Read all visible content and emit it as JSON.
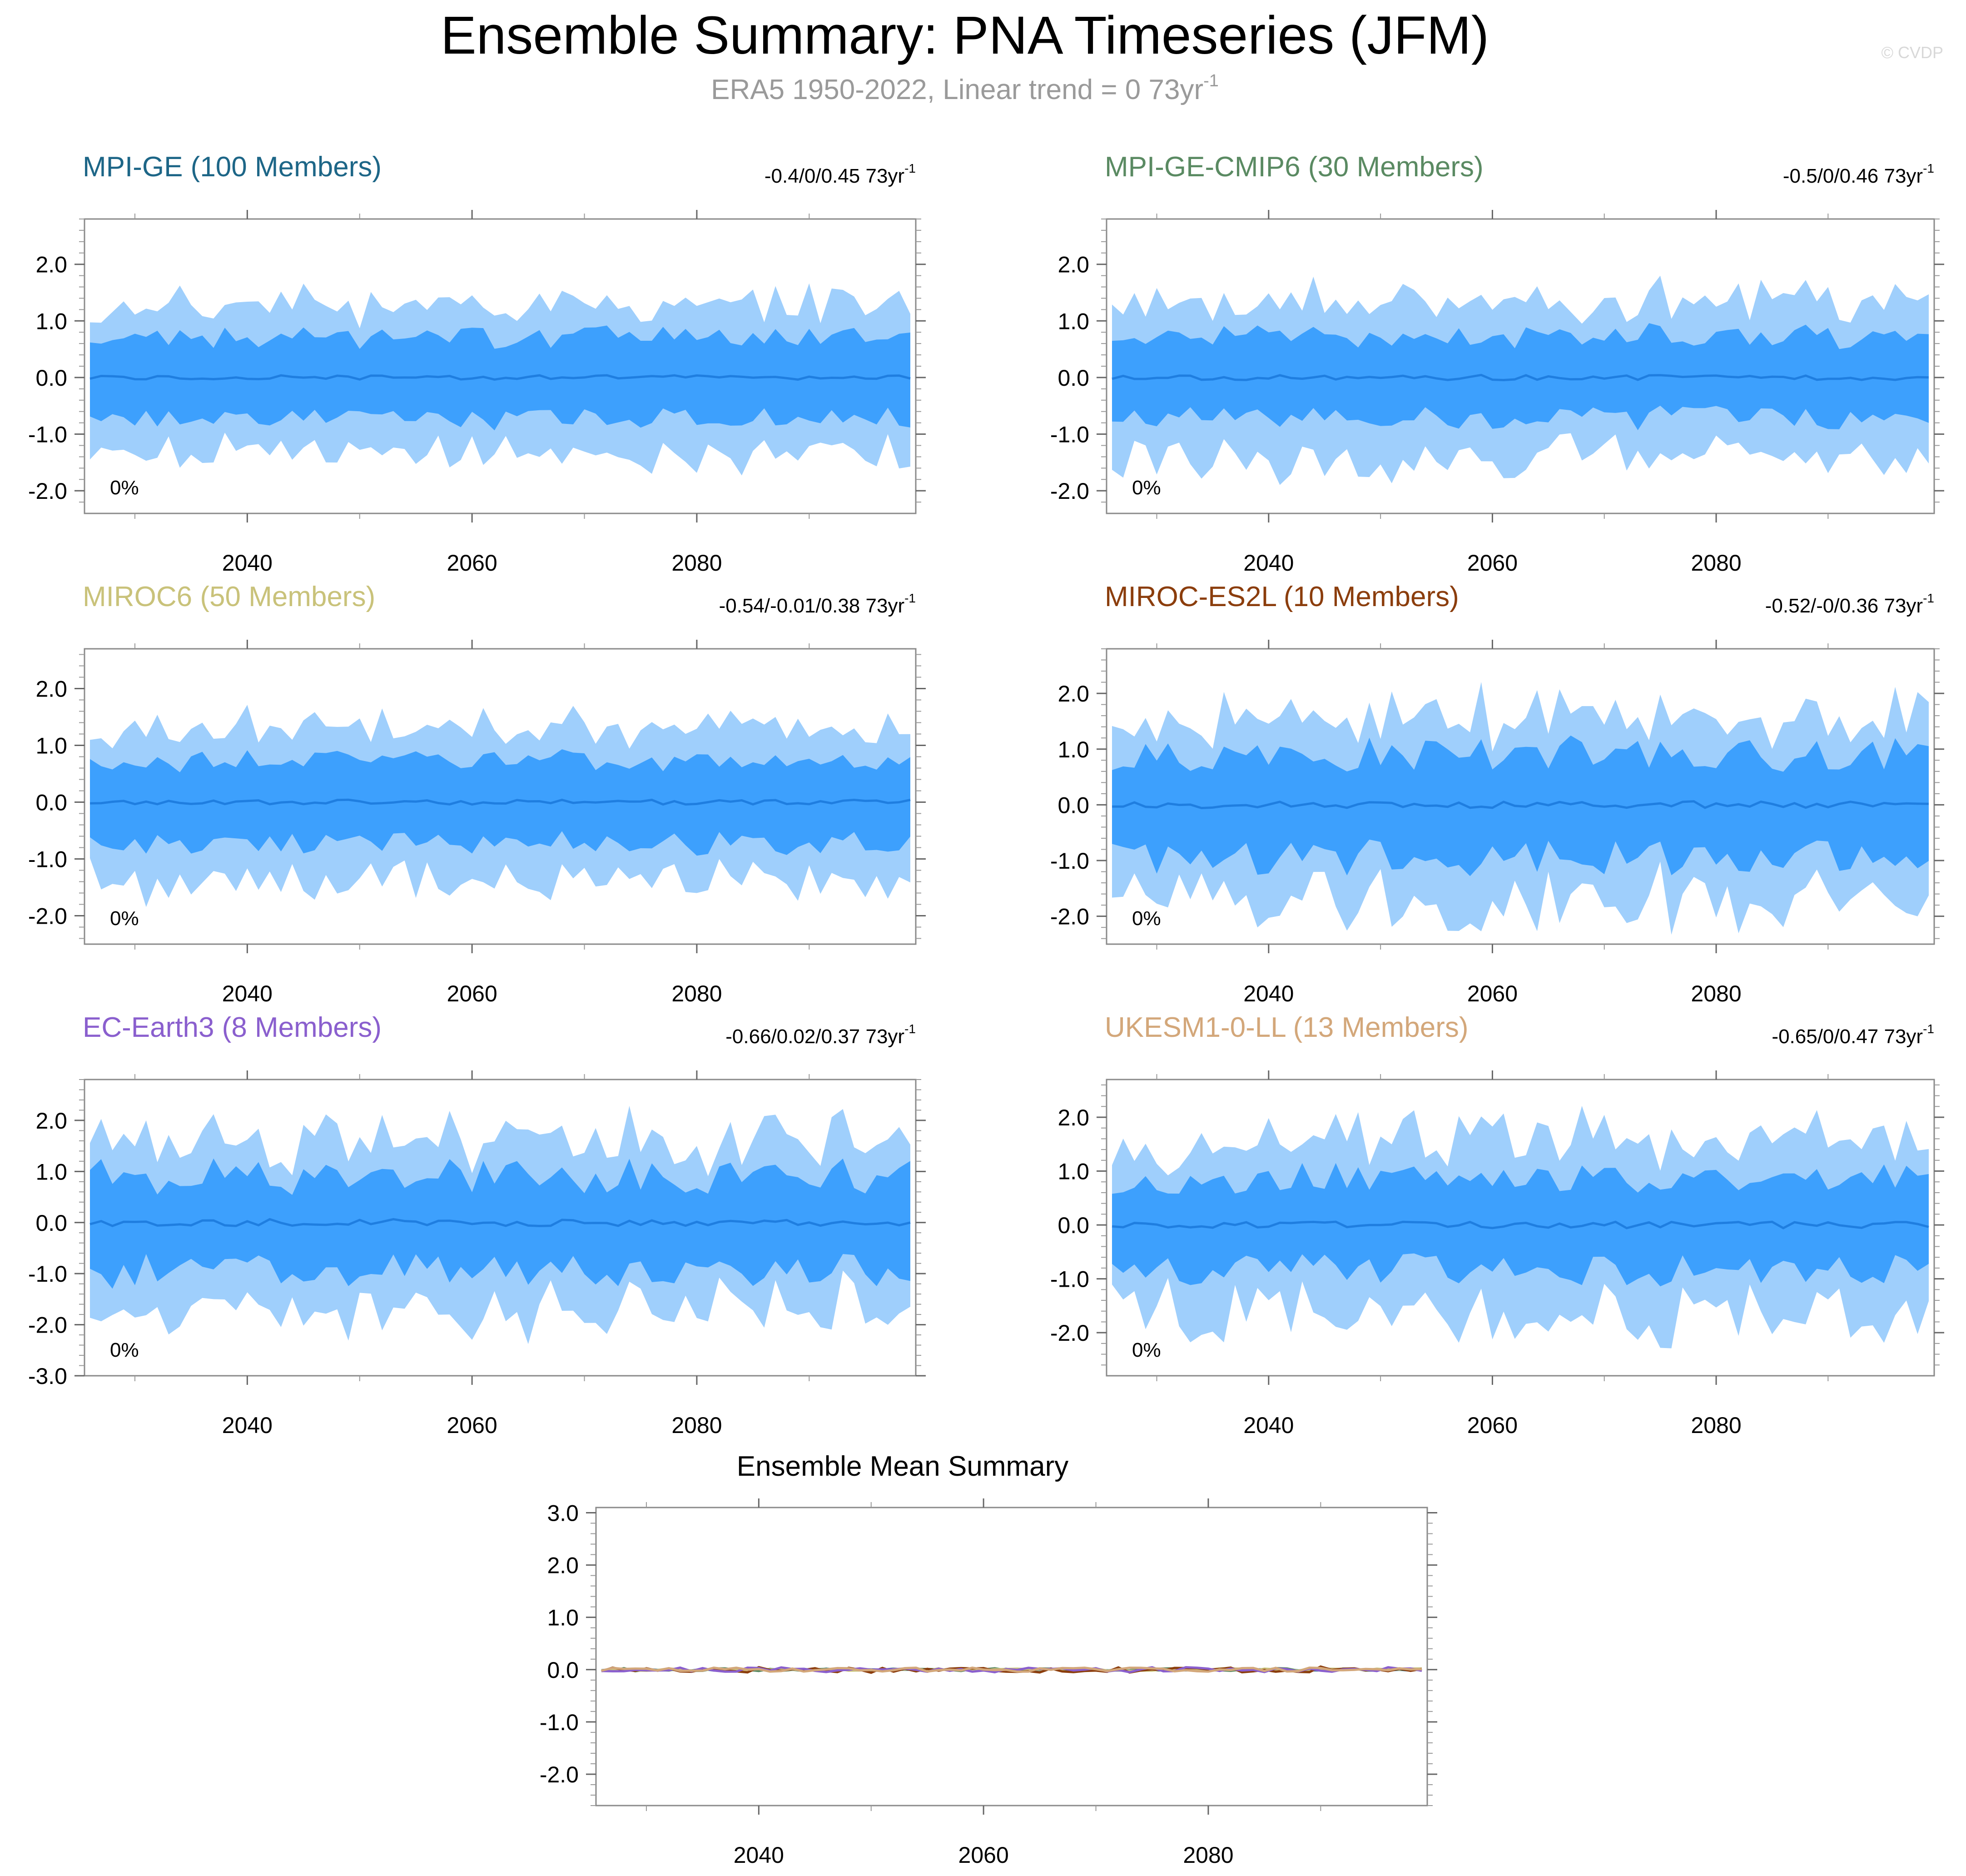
{
  "header": {
    "title": "Ensemble Summary: PNA Timeseries (JFM)",
    "subtitle": "ERA5 1950-2022, Linear trend = 0 73yr",
    "subtitle_sup": "-1",
    "watermark": "© CVDP"
  },
  "colors": {
    "outer_band": "#9fcffc",
    "inner_band": "#3da0fd",
    "mean_line": "#1f7ee0",
    "title_mpi_ge": "#1d6687",
    "title_mpi_ge_cmip6": "#5a8a62",
    "title_miroc6": "#c9c27a",
    "title_miroc_es2l": "#8b3d0c",
    "title_ec_earth3": "#8a5fce",
    "title_ukesm1": "#d3a77a"
  },
  "chart_data": [
    {
      "type": "area",
      "id": "mpi-ge",
      "title": "MPI-GE (100 Members)",
      "title_color": "#1d6687",
      "trend_text": "-0.4/0/0.45 73yr",
      "trend_sup": "-1",
      "annotation": "0%",
      "x_range": [
        2026,
        2099
      ],
      "ylim": [
        -2.4,
        2.8
      ],
      "yticks": [
        2.0,
        1.0,
        0.0,
        -1.0,
        -2.0
      ],
      "ytick_labels": [
        "2.0",
        "1.0",
        "0.0",
        "-1.0",
        "-2.0"
      ],
      "xticks": [
        2040,
        2060,
        2080
      ],
      "xtick_labels": [
        "2040",
        "2060",
        "2080"
      ],
      "spread": 1.0,
      "seed": 11,
      "outer_level": 1.3,
      "inner_level": 0.72
    },
    {
      "type": "area",
      "id": "mpi-ge-cmip6",
      "title": "MPI-GE-CMIP6 (30 Members)",
      "title_color": "#5a8a62",
      "trend_text": "-0.5/0/0.46 73yr",
      "trend_sup": "-1",
      "annotation": "0%",
      "x_range": [
        2026,
        2099
      ],
      "ylim": [
        -2.4,
        2.8
      ],
      "yticks": [
        2.0,
        1.0,
        0.0,
        -1.0,
        -2.0
      ],
      "ytick_labels": [
        "2.0",
        "1.0",
        "0.0",
        "-1.0",
        "-2.0"
      ],
      "xticks": [
        2040,
        2060,
        2080
      ],
      "xtick_labels": [
        "2040",
        "2060",
        "2080"
      ],
      "spread": 1.15,
      "seed": 23,
      "outer_level": 1.35,
      "inner_level": 0.7
    },
    {
      "type": "area",
      "id": "miroc6",
      "title": "MIROC6 (50 Members)",
      "title_color": "#c9c27a",
      "trend_text": "-0.54/-0.01/0.38 73yr",
      "trend_sup": "-1",
      "annotation": "0%",
      "x_range": [
        2026,
        2099
      ],
      "ylim": [
        -2.5,
        2.7
      ],
      "yticks": [
        2.0,
        1.0,
        0.0,
        -1.0,
        -2.0
      ],
      "ytick_labels": [
        "2.0",
        "1.0",
        "0.0",
        "-1.0",
        "-2.0"
      ],
      "xticks": [
        2040,
        2060,
        2080
      ],
      "xtick_labels": [
        "2040",
        "2060",
        "2080"
      ],
      "spread": 1.05,
      "seed": 37,
      "outer_level": 1.3,
      "inner_level": 0.72
    },
    {
      "type": "area",
      "id": "miroc-es2l",
      "title": "MIROC-ES2L (10 Members)",
      "title_color": "#8b3d0c",
      "trend_text": "-0.52/-0/0.36 73yr",
      "trend_sup": "-1",
      "annotation": "0%",
      "x_range": [
        2026,
        2099
      ],
      "ylim": [
        -2.5,
        2.8
      ],
      "yticks": [
        2.0,
        1.0,
        0.0,
        -1.0,
        -2.0
      ],
      "ytick_labels": [
        "2.0",
        "1.0",
        "0.0",
        "-1.0",
        "-2.0"
      ],
      "xticks": [
        2040,
        2060,
        2080
      ],
      "xtick_labels": [
        "2040",
        "2060",
        "2080"
      ],
      "spread": 1.6,
      "seed": 53,
      "outer_level": 1.25,
      "inner_level": 0.8
    },
    {
      "type": "area",
      "id": "ec-earth3",
      "title": "EC-Earth3 (8 Members)",
      "title_color": "#8a5fce",
      "trend_text": "-0.66/0.02/0.37 73yr",
      "trend_sup": "-1",
      "annotation": "0%",
      "x_range": [
        2026,
        2099
      ],
      "ylim": [
        -3.0,
        2.8
      ],
      "yticks": [
        2.0,
        1.0,
        0.0,
        -1.0,
        -2.0,
        -3.0
      ],
      "ytick_labels": [
        "2.0",
        "1.0",
        "0.0",
        "-1.0",
        "-2.0",
        "-3.0"
      ],
      "xticks": [
        2040,
        2060,
        2080
      ],
      "xtick_labels": [
        "2040",
        "2060",
        "2080"
      ],
      "spread": 1.7,
      "seed": 71,
      "outer_level": 1.2,
      "inner_level": 0.78
    },
    {
      "type": "area",
      "id": "ukesm1-0-ll",
      "title": "UKESM1-0-LL (13 Members)",
      "title_color": "#d3a77a",
      "trend_text": "-0.65/0/0.47 73yr",
      "trend_sup": "-1",
      "annotation": "0%",
      "x_range": [
        2026,
        2099
      ],
      "ylim": [
        -2.8,
        2.7
      ],
      "yticks": [
        2.0,
        1.0,
        0.0,
        -1.0,
        -2.0
      ],
      "ytick_labels": [
        "2.0",
        "1.0",
        "0.0",
        "-1.0",
        "-2.0"
      ],
      "xticks": [
        2040,
        2060,
        2080
      ],
      "xtick_labels": [
        "2040",
        "2060",
        "2080"
      ],
      "spread": 1.5,
      "seed": 97,
      "outer_level": 1.35,
      "inner_level": 0.75
    },
    {
      "type": "line",
      "id": "ensemble-mean-summary",
      "title": "Ensemble Mean Summary",
      "x_range": [
        2026,
        2099
      ],
      "ylim": [
        -2.6,
        3.1
      ],
      "yticks": [
        3.0,
        2.0,
        1.0,
        0.0,
        -1.0,
        -2.0
      ],
      "ytick_labels": [
        "3.0",
        "2.0",
        "1.0",
        "0.0",
        "-1.0",
        "-2.0"
      ],
      "xticks": [
        2040,
        2060,
        2080
      ],
      "xtick_labels": [
        "2040",
        "2060",
        "2080"
      ],
      "series": [
        {
          "name": "MPI-GE",
          "color": "#1d6687",
          "amp": 0.02,
          "seed": 5
        },
        {
          "name": "MPI-GE-CMIP6",
          "color": "#5a8a62",
          "amp": 0.03,
          "seed": 9
        },
        {
          "name": "MIROC6",
          "color": "#c9c27a",
          "amp": 0.025,
          "seed": 13
        },
        {
          "name": "MIROC-ES2L",
          "color": "#8b3d0c",
          "amp": 0.06,
          "seed": 17
        },
        {
          "name": "EC-Earth3",
          "color": "#8a5fce",
          "amp": 0.05,
          "seed": 21
        },
        {
          "name": "UKESM1-0-LL",
          "color": "#d3a77a",
          "amp": 0.04,
          "seed": 29
        }
      ]
    }
  ]
}
